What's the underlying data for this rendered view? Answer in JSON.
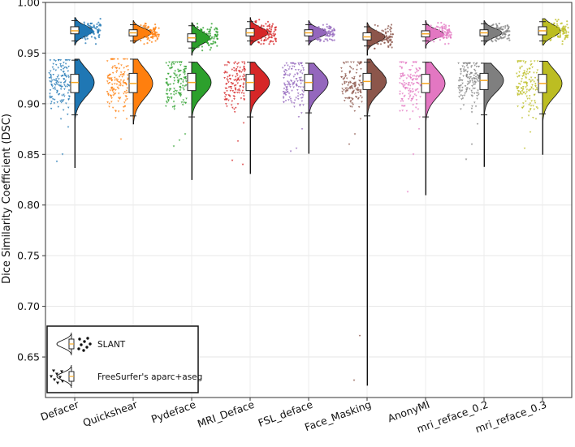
{
  "chart_data": {
    "type": "raincloud",
    "ylabel": "Dice Similarity Coefficient (DSC)",
    "ylim": [
      0.61,
      1.0
    ],
    "yticks": [
      "0.65",
      "0.70",
      "0.75",
      "0.80",
      "0.85",
      "0.90",
      "0.95",
      "1.00"
    ],
    "grid": true,
    "categories": [
      "Defacer",
      "Quickshear",
      "Pydeface",
      "MRI_Deface",
      "FSL_deface",
      "Face_Masking",
      "AnonyMI",
      "mri_reface_0.2",
      "mri_reface_0.3"
    ],
    "colors": [
      "#1f77b4",
      "#ff7f0e",
      "#2ca02c",
      "#d62728",
      "#9467bd",
      "#8c564b",
      "#e377c2",
      "#7f7f7f",
      "#bcbd22"
    ],
    "legend": {
      "position": "lower-left",
      "entries": [
        {
          "label": "SLANT",
          "marker": "circle"
        },
        {
          "label": "FreeSurfer's aparc+aseg",
          "marker": "triangle"
        }
      ]
    },
    "series": [
      {
        "name": "SLANT",
        "box": [
          {
            "whislo": 0.962,
            "q1": 0.969,
            "med": 0.972,
            "q3": 0.976,
            "whishi": 0.982
          },
          {
            "whislo": 0.962,
            "q1": 0.967,
            "med": 0.97,
            "q3": 0.973,
            "whishi": 0.978
          },
          {
            "whislo": 0.955,
            "q1": 0.961,
            "med": 0.965,
            "q3": 0.969,
            "whishi": 0.977
          },
          {
            "whislo": 0.962,
            "q1": 0.967,
            "med": 0.97,
            "q3": 0.974,
            "whishi": 0.981
          },
          {
            "whislo": 0.962,
            "q1": 0.967,
            "med": 0.97,
            "q3": 0.973,
            "whishi": 0.978
          },
          {
            "whislo": 0.957,
            "q1": 0.963,
            "med": 0.966,
            "q3": 0.97,
            "whishi": 0.976
          },
          {
            "whislo": 0.962,
            "q1": 0.966,
            "med": 0.969,
            "q3": 0.972,
            "whishi": 0.978
          },
          {
            "whislo": 0.962,
            "q1": 0.967,
            "med": 0.97,
            "q3": 0.973,
            "whishi": 0.979
          },
          {
            "whislo": 0.962,
            "q1": 0.968,
            "med": 0.972,
            "q3": 0.976,
            "whishi": 0.981
          }
        ],
        "density_range": [
          [
            0.958,
            0.985
          ],
          [
            0.96,
            0.982
          ],
          [
            0.948,
            0.98
          ],
          [
            0.958,
            0.985
          ],
          [
            0.958,
            0.982
          ],
          [
            0.948,
            0.98
          ],
          [
            0.955,
            0.982
          ],
          [
            0.958,
            0.982
          ],
          [
            0.958,
            0.984
          ]
        ]
      },
      {
        "name": "FreeSurfer's aparc+aseg",
        "box": [
          {
            "whislo": 0.889,
            "q1": 0.911,
            "med": 0.921,
            "q3": 0.929,
            "whishi": 0.943
          },
          {
            "whislo": 0.888,
            "q1": 0.911,
            "med": 0.92,
            "q3": 0.93,
            "whishi": 0.944
          },
          {
            "whislo": 0.887,
            "q1": 0.913,
            "med": 0.921,
            "q3": 0.93,
            "whishi": 0.941
          },
          {
            "whislo": 0.887,
            "q1": 0.913,
            "med": 0.921,
            "q3": 0.929,
            "whishi": 0.941
          },
          {
            "whislo": 0.891,
            "q1": 0.913,
            "med": 0.921,
            "q3": 0.929,
            "whishi": 0.94
          },
          {
            "whislo": 0.888,
            "q1": 0.914,
            "med": 0.922,
            "q3": 0.93,
            "whishi": 0.941
          },
          {
            "whislo": 0.887,
            "q1": 0.911,
            "med": 0.92,
            "q3": 0.929,
            "whishi": 0.941
          },
          {
            "whislo": 0.889,
            "q1": 0.914,
            "med": 0.923,
            "q3": 0.93,
            "whishi": 0.94
          },
          {
            "whislo": 0.89,
            "q1": 0.911,
            "med": 0.92,
            "q3": 0.929,
            "whishi": 0.942
          }
        ],
        "density_range": [
          [
            0.837,
            0.944
          ],
          [
            0.88,
            0.944
          ],
          [
            0.825,
            0.941
          ],
          [
            0.831,
            0.941
          ],
          [
            0.851,
            0.94
          ],
          [
            0.622,
            0.944
          ],
          [
            0.81,
            0.941
          ],
          [
            0.838,
            0.94
          ],
          [
            0.85,
            0.942
          ]
        ],
        "outliers": [
          [
            0.877,
            0.85,
            0.843
          ],
          [
            0.885,
            0.865
          ],
          [
            0.87,
            0.864,
            0.858
          ],
          [
            0.881,
            0.863,
            0.844,
            0.84
          ],
          [
            0.875,
            0.856,
            0.853
          ],
          [
            0.885,
            0.87,
            0.86,
            0.671,
            0.627
          ],
          [
            0.875,
            0.85,
            0.813
          ],
          [
            0.88,
            0.86,
            0.845
          ],
          [
            0.885,
            0.872,
            0.856
          ]
        ]
      }
    ]
  }
}
